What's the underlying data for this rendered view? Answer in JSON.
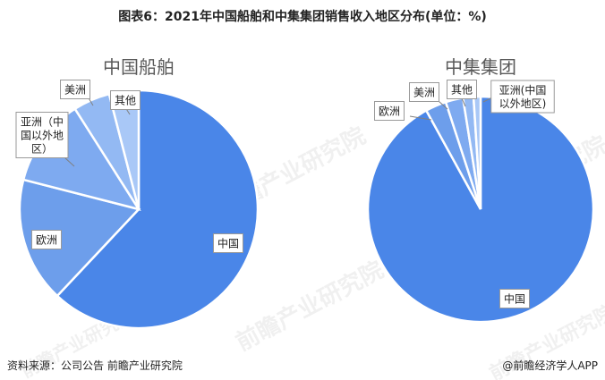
{
  "figure": {
    "title": "图表6：2021年中国船舶和中集集团销售收入地区分布(单位：%)",
    "source": "资料来源：公司公告 前瞻产业研究院",
    "credit": "@前瞻经济学人APP",
    "watermark": "前瞻产业研究院"
  },
  "colors": {
    "slices": [
      "#4a86e8",
      "#6d9eeb",
      "#7eaaf0",
      "#93b9f3",
      "#a9c8f7"
    ],
    "edge": "#ffffff",
    "label_border": "#999999"
  },
  "chart_data": [
    {
      "type": "pie",
      "title": "中国船舶",
      "start_angle_deg": 0,
      "direction": "clockwise",
      "categories": [
        "中国",
        "欧洲",
        "亚洲（中国以外地区）",
        "美洲",
        "其他"
      ],
      "label_lines": [
        [
          "中国"
        ],
        [
          "欧洲"
        ],
        [
          "亚洲（中",
          "国以外地",
          "区）"
        ],
        [
          "美洲"
        ],
        [
          "其他"
        ]
      ],
      "values": [
        62.0,
        17.0,
        12.0,
        5.0,
        4.0
      ]
    },
    {
      "type": "pie",
      "title": "中集集团",
      "start_angle_deg": 0,
      "direction": "clockwise",
      "categories": [
        "中国",
        "欧洲",
        "美洲",
        "其他",
        "亚洲(中国以外地区)"
      ],
      "label_lines": [
        [
          "中国"
        ],
        [
          "欧洲"
        ],
        [
          "美洲"
        ],
        [
          "其他"
        ],
        [
          "亚洲(中国",
          "以外地区)"
        ]
      ],
      "values": [
        92.0,
        3.0,
        2.5,
        1.5,
        1.0
      ]
    }
  ]
}
